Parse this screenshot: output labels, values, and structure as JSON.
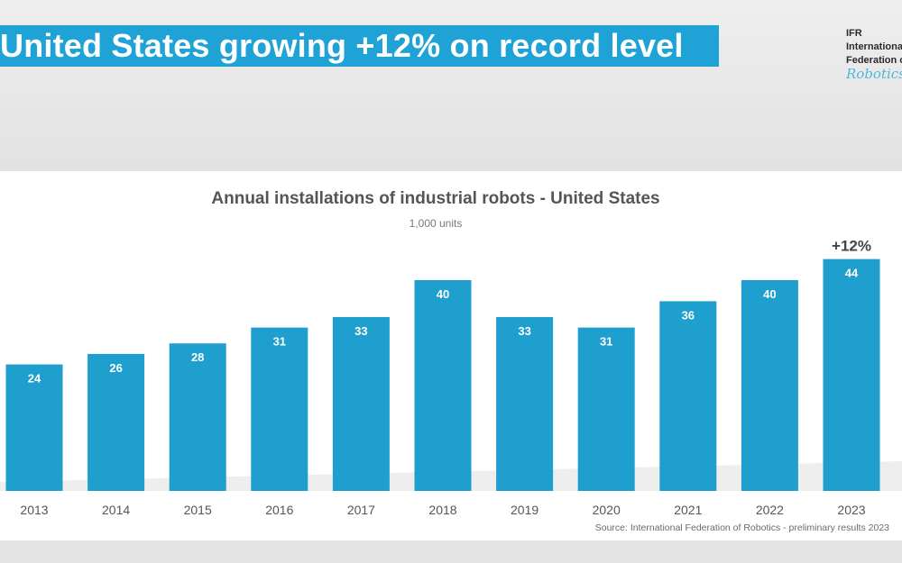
{
  "slide": {
    "title": "United States growing +12% on record level",
    "logo": {
      "line1": "IFR",
      "line2": "International",
      "line3": "Federation of",
      "line4": "Robotics"
    },
    "colors": {
      "title_band": "#1fa3d6",
      "bar": "#1e9fce"
    }
  },
  "chart_data": {
    "type": "bar",
    "title": "Annual installations of industrial robots - United States",
    "subtitle": "1,000 units",
    "categories": [
      "2013",
      "2014",
      "2015",
      "2016",
      "2017",
      "2018",
      "2019",
      "2020",
      "2021",
      "2022",
      "2023"
    ],
    "values": [
      24,
      26,
      28,
      31,
      33,
      40,
      33,
      31,
      36,
      40,
      44
    ],
    "annotation": {
      "category": "2023",
      "text": "+12%"
    },
    "source": "Source: International Federation of Robotics - preliminary results 2023",
    "grid": false,
    "legend": "none"
  }
}
